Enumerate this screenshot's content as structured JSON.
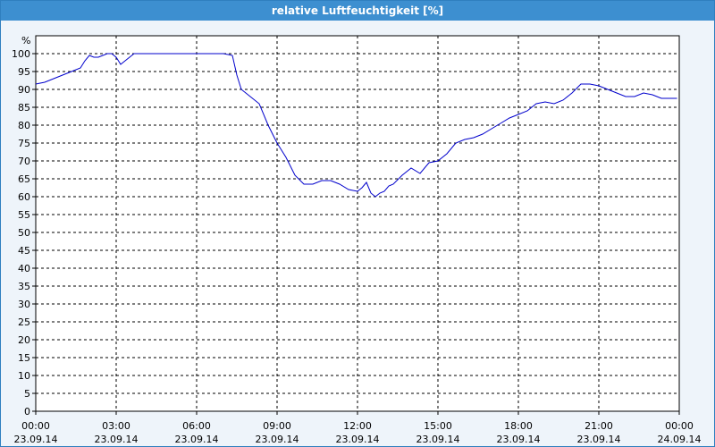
{
  "window": {
    "title": "relative Luftfeuchtigkeit [%]"
  },
  "chart_data": {
    "type": "line",
    "title": "relative Luftfeuchtigkeit [%]",
    "ylabel": "%",
    "xlabel": "",
    "ylim": [
      0,
      100
    ],
    "yticks": [
      0,
      5,
      10,
      15,
      20,
      25,
      30,
      35,
      40,
      45,
      50,
      55,
      60,
      65,
      70,
      75,
      80,
      85,
      90,
      95,
      100
    ],
    "xlim": [
      "23.09.14 00:00",
      "24.09.14 00:00"
    ],
    "xticks": [
      {
        "time": "00:00",
        "date": "23.09.14"
      },
      {
        "time": "03:00",
        "date": "23.09.14"
      },
      {
        "time": "06:00",
        "date": "23.09.14"
      },
      {
        "time": "09:00",
        "date": "23.09.14"
      },
      {
        "time": "12:00",
        "date": "23.09.14"
      },
      {
        "time": "15:00",
        "date": "23.09.14"
      },
      {
        "time": "18:00",
        "date": "23.09.14"
      },
      {
        "time": "21:00",
        "date": "23.09.14"
      },
      {
        "time": "00:00",
        "date": "24.09.14"
      }
    ],
    "grid": true,
    "line_color": "#0000cc",
    "series": [
      {
        "x": [
          "23.09.14 00:00",
          "23.09.14 00:20",
          "23.09.14 00:40",
          "23.09.14 01:00",
          "23.09.14 01:20",
          "23.09.14 01:40",
          "23.09.14 01:50",
          "23.09.14 02:00",
          "23.09.14 02:10",
          "23.09.14 02:20",
          "23.09.14 02:30",
          "23.09.14 02:40",
          "23.09.14 02:50",
          "23.09.14 03:00",
          "23.09.14 03:10",
          "23.09.14 03:20",
          "23.09.14 03:40",
          "23.09.14 04:00",
          "23.09.14 05:00",
          "23.09.14 06:00",
          "23.09.14 07:00",
          "23.09.14 07:20",
          "23.09.14 07:30",
          "23.09.14 07:40",
          "23.09.14 08:00",
          "23.09.14 08:20",
          "23.09.14 08:40",
          "23.09.14 09:00",
          "23.09.14 09:20",
          "23.09.14 09:40",
          "23.09.14 10:00",
          "23.09.14 10:20",
          "23.09.14 10:40",
          "23.09.14 11:00",
          "23.09.14 11:20",
          "23.09.14 11:40",
          "23.09.14 12:00",
          "23.09.14 12:10",
          "23.09.14 12:20",
          "23.09.14 12:30",
          "23.09.14 12:40",
          "23.09.14 12:50",
          "23.09.14 13:00",
          "23.09.14 13:10",
          "23.09.14 13:20",
          "23.09.14 13:40",
          "23.09.14 14:00",
          "23.09.14 14:20",
          "23.09.14 14:40",
          "23.09.14 15:00",
          "23.09.14 15:20",
          "23.09.14 15:40",
          "23.09.14 16:00",
          "23.09.14 16:20",
          "23.09.14 16:40",
          "23.09.14 17:00",
          "23.09.14 17:20",
          "23.09.14 17:40",
          "23.09.14 18:00",
          "23.09.14 18:20",
          "23.09.14 18:40",
          "23.09.14 19:00",
          "23.09.14 19:20",
          "23.09.14 19:40",
          "23.09.14 20:00",
          "23.09.14 20:20",
          "23.09.14 20:40",
          "23.09.14 21:00",
          "23.09.14 21:20",
          "23.09.14 21:40",
          "23.09.14 22:00",
          "23.09.14 22:20",
          "23.09.14 22:40",
          "23.09.14 23:00",
          "23.09.14 23:20",
          "23.09.14 23:40",
          "23.09.14 23:55"
        ],
        "y": [
          91.5,
          92,
          93,
          94,
          95,
          96,
          98,
          99.5,
          99,
          99,
          99.5,
          100,
          100,
          99,
          97,
          98,
          100,
          100,
          100,
          100,
          100,
          99.5,
          94,
          90,
          88,
          86,
          80,
          75,
          71,
          66,
          63.5,
          63.5,
          64.5,
          64.5,
          63.5,
          62,
          61.5,
          62.5,
          64,
          61,
          60,
          61,
          61.5,
          63,
          63.5,
          66,
          68,
          66.5,
          69.5,
          70,
          72,
          75,
          76,
          76.5,
          77.5,
          79,
          80.5,
          82,
          83,
          84,
          86,
          86.5,
          86,
          87,
          89,
          91.5,
          91.5,
          91,
          90,
          89,
          88,
          88,
          89,
          88.5,
          87.5,
          87.5,
          87.5
        ]
      }
    ]
  }
}
